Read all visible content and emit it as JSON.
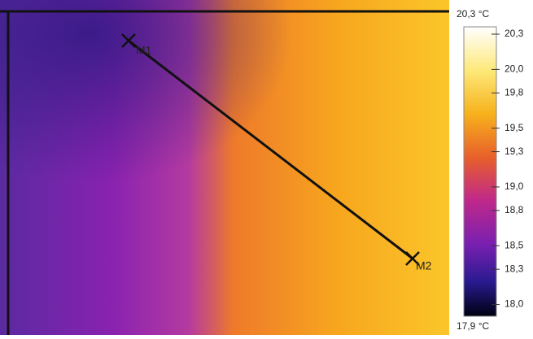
{
  "thermal_image": {
    "markers": [
      {
        "label": "M1"
      },
      {
        "label": "M2"
      }
    ]
  },
  "colorbar": {
    "max_label": "20,3 °C",
    "min_label": "17,9 °C",
    "range": [
      17.9,
      20.3
    ],
    "ticks": [
      {
        "value": 20.3,
        "label": "20,3"
      },
      {
        "value": 20.0,
        "label": "20,0"
      },
      {
        "value": 19.8,
        "label": "19,8"
      },
      {
        "value": 19.5,
        "label": "19,5"
      },
      {
        "value": 19.3,
        "label": "19,3"
      },
      {
        "value": 19.0,
        "label": "19,0"
      },
      {
        "value": 18.8,
        "label": "18,8"
      },
      {
        "value": 18.5,
        "label": "18,5"
      },
      {
        "value": 18.3,
        "label": "18,3"
      },
      {
        "value": 18.0,
        "label": "18,0"
      }
    ]
  }
}
